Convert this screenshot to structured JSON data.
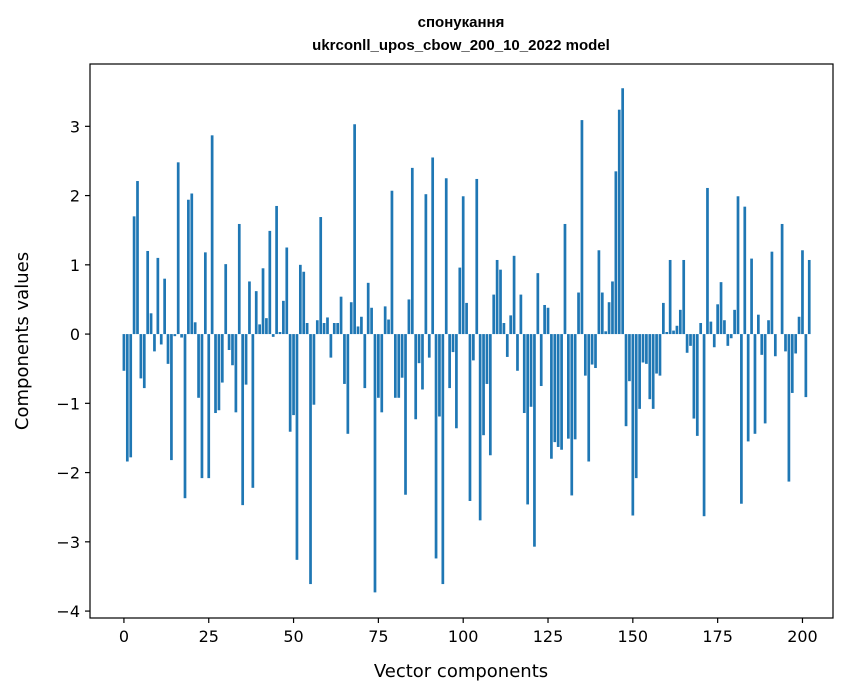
{
  "chart_data": {
    "type": "bar",
    "title_line1": "спонукання",
    "title_line2": "ukrconll_upos_cbow_200_10_2022 model",
    "xlabel": "Vector components",
    "ylabel": "Components values",
    "xlim": [
      -10,
      209
    ],
    "ylim": [
      -4.1,
      3.9
    ],
    "x_ticks": [
      0,
      25,
      50,
      75,
      100,
      125,
      150,
      175,
      200
    ],
    "y_ticks": [
      -4,
      -3,
      -2,
      -1,
      0,
      1,
      2,
      3
    ],
    "bar_color": "#1f77b4",
    "values": [
      -0.53,
      -1.84,
      -1.78,
      1.7,
      2.21,
      -0.64,
      -0.78,
      1.2,
      0.3,
      -0.25,
      1.1,
      -0.15,
      0.8,
      -0.43,
      -1.82,
      -0.03,
      2.48,
      -0.05,
      -2.37,
      1.94,
      2.03,
      0.17,
      -0.92,
      -2.08,
      1.18,
      -2.08,
      2.87,
      -1.14,
      -1.1,
      -0.7,
      1.01,
      -0.23,
      -0.45,
      -1.13,
      1.59,
      -2.47,
      -0.73,
      0.76,
      -2.22,
      0.62,
      0.14,
      0.95,
      0.23,
      1.49,
      -0.04,
      1.85,
      0.03,
      0.48,
      1.25,
      -1.41,
      -1.17,
      -3.26,
      1.0,
      0.9,
      0.16,
      -3.61,
      -1.02,
      0.2,
      1.69,
      0.16,
      0.24,
      -0.34,
      0.16,
      0.16,
      0.54,
      -0.72,
      -1.44,
      0.46,
      3.03,
      0.11,
      0.25,
      -0.78,
      0.74,
      0.38,
      -3.73,
      -0.92,
      -1.13,
      0.4,
      0.21,
      2.07,
      -0.92,
      -0.92,
      -0.63,
      -2.32,
      0.5,
      2.4,
      -1.23,
      -0.42,
      -0.8,
      2.02,
      -0.34,
      2.55,
      -3.24,
      -1.19,
      -3.61,
      2.25,
      -0.78,
      -0.26,
      -1.36,
      0.96,
      1.99,
      0.45,
      -2.41,
      -0.38,
      2.24,
      -2.69,
      -1.46,
      -0.72,
      -1.75,
      0.57,
      1.07,
      0.93,
      0.16,
      -0.33,
      0.27,
      1.13,
      -0.53,
      0.57,
      -1.14,
      -2.46,
      -1.05,
      -3.07,
      0.88,
      -0.75,
      0.42,
      0.38,
      -1.8,
      -1.56,
      -1.63,
      -1.67,
      1.59,
      -1.51,
      -2.33,
      -1.52,
      0.6,
      3.09,
      -0.6,
      -1.84,
      -0.44,
      -0.49,
      1.21,
      0.6,
      0.04,
      0.46,
      0.76,
      2.35,
      3.24,
      3.55,
      -1.33,
      -0.68,
      -2.62,
      -2.08,
      -1.08,
      -0.41,
      -0.43,
      -0.94,
      -1.08,
      -0.57,
      -0.6,
      0.45,
      0.03,
      1.07,
      0.05,
      0.12,
      0.35,
      1.07,
      -0.27,
      -0.17,
      -1.22,
      -1.47,
      0.16,
      -2.63,
      2.11,
      0.18,
      -0.19,
      0.43,
      0.75,
      0.2,
      -0.17,
      -0.06,
      0.35,
      1.99,
      -2.45,
      1.84,
      -1.55,
      1.09,
      -1.44,
      0.28,
      -0.3,
      -1.29,
      0.2,
      1.19,
      -0.32,
      0.0,
      1.59,
      -0.25,
      -2.13,
      -0.85,
      -0.28,
      0.25,
      1.21,
      -0.91,
      1.07
    ]
  }
}
